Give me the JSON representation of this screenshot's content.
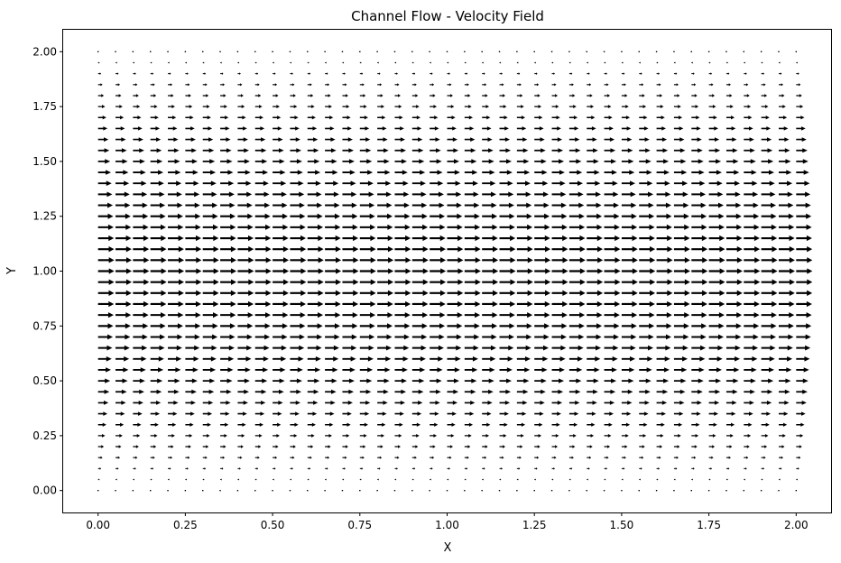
{
  "chart_data": {
    "type": "quiver",
    "title": "Channel Flow - Velocity Field",
    "xlabel": "X",
    "ylabel": "Y",
    "xlim": [
      -0.1,
      2.1
    ],
    "ylim": [
      -0.1,
      2.1
    ],
    "xticks": [
      "0.00",
      "0.25",
      "0.50",
      "0.75",
      "1.00",
      "1.25",
      "1.50",
      "1.75",
      "2.00"
    ],
    "yticks": [
      "0.00",
      "0.25",
      "0.50",
      "0.75",
      "1.00",
      "1.25",
      "1.50",
      "1.75",
      "2.00"
    ],
    "grid": false,
    "field": {
      "x_start": 0.0,
      "x_end": 2.0,
      "nx": 41,
      "y_start": 0.0,
      "y_end": 2.0,
      "ny": 41,
      "u_formula": "u = u_max * y * (2 - y)",
      "v": 0,
      "u_max": 1.0,
      "arrow_color": "#000000"
    }
  }
}
